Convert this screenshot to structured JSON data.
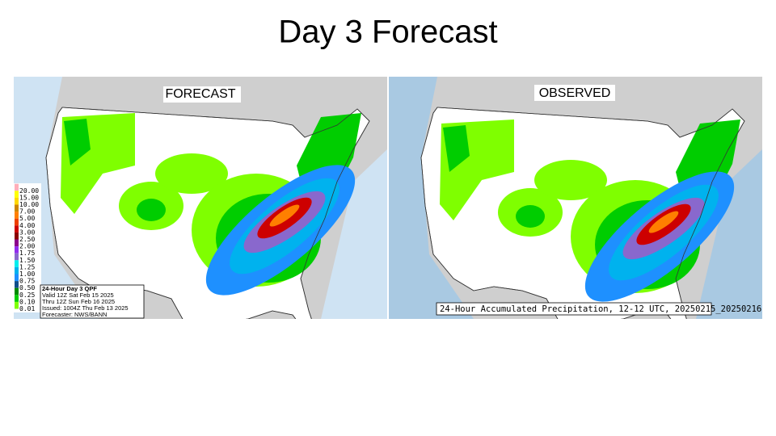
{
  "header": {
    "title": "Day 3 Forecast"
  },
  "panels": [
    {
      "label": "FORECAST",
      "legend": [
        {
          "label": "20.00",
          "color": "#ffaeb9"
        },
        {
          "label": "15.00",
          "color": "#ffff00"
        },
        {
          "label": "10.00",
          "color": "#ffd700"
        },
        {
          "label": "7.00",
          "color": "#cd8500"
        },
        {
          "label": "5.00",
          "color": "#ff7f00"
        },
        {
          "label": "4.00",
          "color": "#ee4000"
        },
        {
          "label": "3.00",
          "color": "#cd0000"
        },
        {
          "label": "2.50",
          "color": "#8b0000"
        },
        {
          "label": "2.00",
          "color": "#8b008b"
        },
        {
          "label": "1.75",
          "color": "#912cee"
        },
        {
          "label": "1.50",
          "color": "#8968cd"
        },
        {
          "label": "1.25",
          "color": "#00eeee"
        },
        {
          "label": "1.00",
          "color": "#00b2ee"
        },
        {
          "label": "0.75",
          "color": "#1e90ff"
        },
        {
          "label": "0.50",
          "color": "#104e8b"
        },
        {
          "label": "0.25",
          "color": "#008b00"
        },
        {
          "label": "0.10",
          "color": "#00cd00"
        },
        {
          "label": "0.01",
          "color": "#7fff00"
        }
      ],
      "info": [
        "24-Hour Day 3 QPF",
        "Valid 12Z Sat Feb 15 2025",
        "Thru 12Z Sun Feb 16 2025",
        "Issued: 1004Z Thu Feb 13 2025",
        "Forecaster: NWS/BANN"
      ]
    },
    {
      "label": "OBSERVED",
      "caption": "24-Hour Accumulated Precipitation, 12-12 UTC, 20250215_20250216"
    }
  ]
}
